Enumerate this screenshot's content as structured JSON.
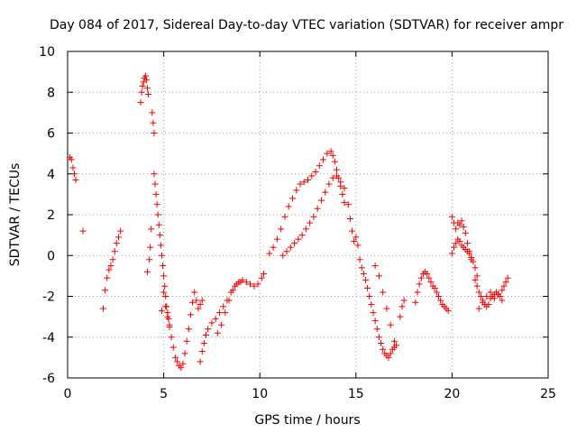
{
  "chart_data": {
    "type": "scatter",
    "title": "Day 084 of 2017, Sidereal Day-to-day VTEC variation (SDTVAR) for receiver ampr",
    "xlabel": "GPS time / hours",
    "ylabel": "SDTVAR / TECUs",
    "xlim": [
      0,
      25
    ],
    "ylim": [
      -6,
      10
    ],
    "xticks": [
      0,
      5,
      10,
      15,
      20,
      25
    ],
    "yticks": [
      -6,
      -4,
      -2,
      0,
      2,
      4,
      6,
      8,
      10
    ],
    "grid": true,
    "marker": "+",
    "color": "#ee0000",
    "series": [
      {
        "name": "SDTVAR",
        "x": [
          0.12,
          0.2,
          0.28,
          0.35,
          0.42,
          0.8,
          1.85,
          1.95,
          2.05,
          2.15,
          2.25,
          2.35,
          2.45,
          2.55,
          2.65,
          2.75,
          3.8,
          3.85,
          3.9,
          3.95,
          4.0,
          4.05,
          4.1,
          4.15,
          4.2,
          4.15,
          4.25,
          4.3,
          4.35,
          4.4,
          4.45,
          4.5,
          4.5,
          4.55,
          4.6,
          4.65,
          4.7,
          4.75,
          4.8,
          4.85,
          4.9,
          4.95,
          5.0,
          5.05,
          5.1,
          5.15,
          5.2,
          5.25,
          5.3,
          4.9,
          5.0,
          5.1,
          5.2,
          5.3,
          5.4,
          5.5,
          5.6,
          5.7,
          5.8,
          5.9,
          6.0,
          6.1,
          6.2,
          6.3,
          6.4,
          6.5,
          6.6,
          6.7,
          6.8,
          6.9,
          7.0,
          6.9,
          7.0,
          7.1,
          7.2,
          7.3,
          7.5,
          7.7,
          7.9,
          8.1,
          8.3,
          8.5,
          8.7,
          8.9,
          9.1,
          9.3,
          9.5,
          9.7,
          9.9,
          10.1,
          10.2,
          7.8,
          8.0,
          8.2,
          8.4,
          8.6,
          8.8,
          9.0,
          10.5,
          10.7,
          10.9,
          11.1,
          11.3,
          11.5,
          11.7,
          11.9,
          12.1,
          12.3,
          12.5,
          12.7,
          12.9,
          13.1,
          13.3,
          13.5,
          13.7,
          13.8,
          13.9,
          14.0,
          14.1,
          14.2,
          14.3,
          14.4,
          11.2,
          11.4,
          11.6,
          11.8,
          12.0,
          12.2,
          12.4,
          12.6,
          12.8,
          13.0,
          13.2,
          13.4,
          13.6,
          13.8,
          14.0,
          14.2,
          14.4,
          14.6,
          14.7,
          14.8,
          14.9,
          15.0,
          15.1,
          15.2,
          15.3,
          15.4,
          15.5,
          15.6,
          15.7,
          15.8,
          15.9,
          16.0,
          16.1,
          16.2,
          16.3,
          16.4,
          16.5,
          16.6,
          16.7,
          16.8,
          16.9,
          17.0,
          17.1,
          16.0,
          16.2,
          16.4,
          16.6,
          16.8,
          17.0,
          17.3,
          17.4,
          17.5,
          18.1,
          18.2,
          18.3,
          18.4,
          18.5,
          18.6,
          18.7,
          18.8,
          18.9,
          19.0,
          19.1,
          19.2,
          19.3,
          19.4,
          19.5,
          19.6,
          19.7,
          19.8,
          20.0,
          20.1,
          20.2,
          20.3,
          20.4,
          20.5,
          20.6,
          20.7,
          20.8,
          20.9,
          21.0,
          21.1,
          21.2,
          21.3,
          20.0,
          20.1,
          20.2,
          20.3,
          20.4,
          20.5,
          20.6,
          20.7,
          20.8,
          20.9,
          21.0,
          21.2,
          21.3,
          21.4,
          21.5,
          21.6,
          21.7,
          21.8,
          21.9,
          22.0,
          22.1,
          22.2,
          22.3,
          22.4,
          22.5,
          22.6,
          22.7,
          22.8,
          22.9,
          21.4,
          21.6,
          21.8,
          22.0,
          22.2,
          22.4,
          22.6
        ],
        "y": [
          4.8,
          4.7,
          4.3,
          4.0,
          3.7,
          1.2,
          -2.6,
          -1.7,
          -1.1,
          -0.7,
          -0.5,
          -0.2,
          0.2,
          0.6,
          0.9,
          1.2,
          7.5,
          8.0,
          8.3,
          8.5,
          8.7,
          8.8,
          8.6,
          8.2,
          7.9,
          -0.8,
          -0.2,
          0.4,
          1.3,
          7.0,
          6.5,
          6.0,
          4.0,
          3.5,
          3.0,
          2.5,
          2.0,
          1.5,
          1.0,
          0.5,
          0.0,
          -0.5,
          -1.0,
          -1.5,
          -2.0,
          -2.5,
          -2.8,
          -3.1,
          -3.4,
          -2.7,
          -1.8,
          -2.5,
          -3.0,
          -3.5,
          -4.0,
          -4.5,
          -5.0,
          -5.2,
          -5.4,
          -5.5,
          -5.3,
          -4.8,
          -4.2,
          -3.6,
          -2.9,
          -2.3,
          -1.8,
          -2.2,
          -2.6,
          -2.4,
          -2.2,
          -5.2,
          -4.7,
          -4.3,
          -3.9,
          -3.6,
          -3.3,
          -3.1,
          -2.8,
          -2.5,
          -2.2,
          -1.8,
          -1.5,
          -1.3,
          -1.2,
          -1.3,
          -1.4,
          -1.5,
          -1.4,
          -1.1,
          -0.9,
          -3.8,
          -3.4,
          -2.8,
          -2.2,
          -1.7,
          -1.4,
          -1.3,
          0.1,
          0.4,
          0.8,
          1.3,
          1.9,
          2.4,
          2.8,
          3.2,
          3.5,
          3.6,
          3.7,
          3.9,
          4.1,
          4.4,
          4.7,
          5.0,
          5.1,
          4.9,
          4.6,
          4.2,
          3.8,
          3.4,
          3.0,
          2.6,
          0.0,
          0.2,
          0.4,
          0.6,
          0.8,
          1.0,
          1.3,
          1.6,
          1.9,
          2.3,
          2.7,
          3.1,
          3.5,
          3.8,
          3.9,
          3.6,
          3.3,
          2.5,
          1.8,
          1.2,
          0.7,
          0.9,
          0.5,
          -0.2,
          -0.6,
          -0.9,
          -1.2,
          -1.6,
          -2.0,
          -2.4,
          -2.8,
          -3.2,
          -3.6,
          -4.0,
          -4.3,
          -4.6,
          -4.8,
          -4.9,
          -5.0,
          -4.8,
          -4.6,
          -4.5,
          -4.4,
          -0.5,
          -1.0,
          -1.8,
          -2.6,
          -3.4,
          -4.2,
          -3.0,
          -2.5,
          -2.2,
          -2.3,
          -1.8,
          -1.4,
          -1.1,
          -0.9,
          -0.8,
          -0.9,
          -1.1,
          -1.3,
          -1.5,
          -1.6,
          -1.8,
          -2.0,
          -2.2,
          -2.4,
          -2.5,
          -2.6,
          -2.7,
          1.9,
          1.6,
          1.3,
          1.6,
          1.5,
          1.7,
          1.4,
          1.1,
          0.6,
          0.2,
          -0.1,
          -0.3,
          -0.6,
          -1.0,
          0.1,
          0.4,
          0.6,
          0.8,
          0.7,
          0.5,
          0.4,
          0.3,
          0.2,
          0.1,
          -0.2,
          -1.2,
          -1.5,
          -1.8,
          -2.0,
          -2.2,
          -2.4,
          -2.5,
          -2.4,
          -2.1,
          -2.0,
          -1.9,
          -1.8,
          -1.9,
          -2.0,
          -1.7,
          -1.5,
          -1.3,
          -1.1,
          -2.6,
          -2.3,
          -2.0,
          -1.8,
          -2.1,
          -1.9,
          -2.2
        ]
      }
    ]
  }
}
